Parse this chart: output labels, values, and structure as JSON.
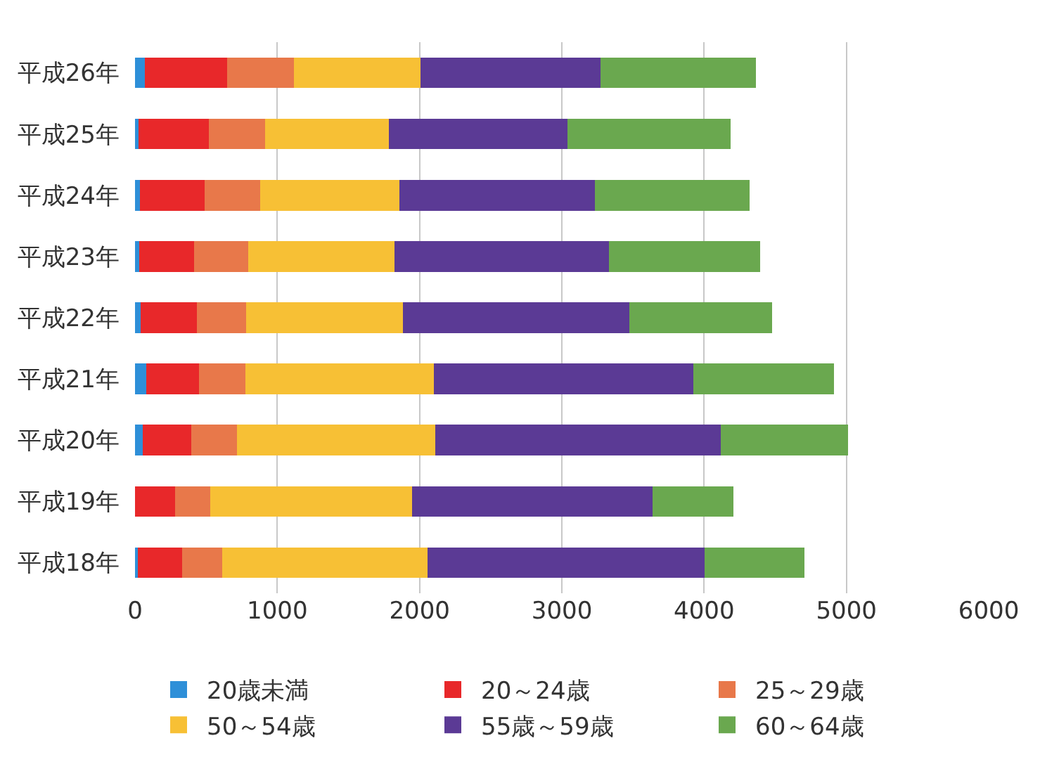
{
  "chart_data": {
    "type": "bar",
    "orientation": "horizontal",
    "stacked": true,
    "categories": [
      "平成26年",
      "平成25年",
      "平成24年",
      "平成23年",
      "平成22年",
      "平成21年",
      "平成20年",
      "平成19年",
      "平成18年"
    ],
    "series": [
      {
        "name": "20歳未満",
        "color": "#2e8fd8",
        "values": [
          68,
          25,
          36,
          29,
          39,
          79,
          53,
          0,
          20
        ]
      },
      {
        "name": "20～24歳",
        "color": "#e8282a",
        "values": [
          577,
          496,
          453,
          385,
          394,
          372,
          344,
          281,
          309
        ]
      },
      {
        "name": "25～29歳",
        "color": "#e8784a",
        "values": [
          471,
          393,
          390,
          383,
          347,
          325,
          319,
          247,
          284
        ]
      },
      {
        "name": "50～54歳",
        "color": "#f7c035",
        "values": [
          892,
          868,
          978,
          1028,
          1101,
          1325,
          1392,
          1421,
          1445
        ]
      },
      {
        "name": "55歳～59歳",
        "color": "#5b3a95",
        "values": [
          1262,
          1257,
          1374,
          1505,
          1591,
          1825,
          2009,
          1690,
          1945
        ]
      },
      {
        "name": "60～64歳",
        "color": "#6aa84f",
        "values": [
          1095,
          1145,
          1091,
          1066,
          1006,
          988,
          896,
          569,
          702
        ]
      }
    ],
    "xlim": [
      0,
      6000
    ],
    "xticks": [
      0,
      1000,
      2000,
      3000,
      4000,
      5000,
      6000
    ],
    "grid": "x",
    "legend": "bottom"
  }
}
